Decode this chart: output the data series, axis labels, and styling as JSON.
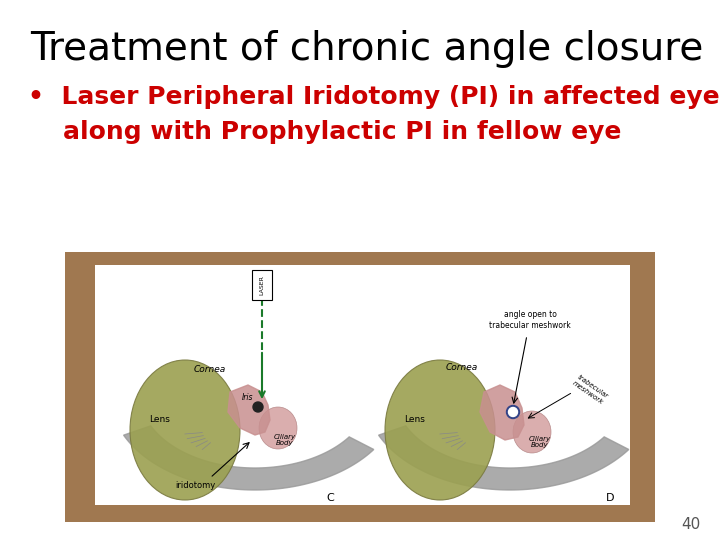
{
  "title": "Treatment of chronic angle closure",
  "title_fontsize": 28,
  "title_color": "#000000",
  "bullet_line1": "•  Laser Peripheral Iridotomy (PI) in affected eye",
  "bullet_line2": "    along with Prophylactic PI in fellow eye",
  "bullet_fontsize": 18,
  "bullet_color": "#CC0000",
  "background_color": "#ffffff",
  "slide_number": "40",
  "slide_number_color": "#555555",
  "slide_number_fontsize": 11,
  "brown_color": "#A07850",
  "white_inner_color": "#ffffff",
  "gray_cornea": "#999999",
  "lens_color": "#9BA050",
  "iris_color": "#C89090",
  "ciliary_color": "#D4A0A0",
  "laser_green": "#1A7A2A"
}
